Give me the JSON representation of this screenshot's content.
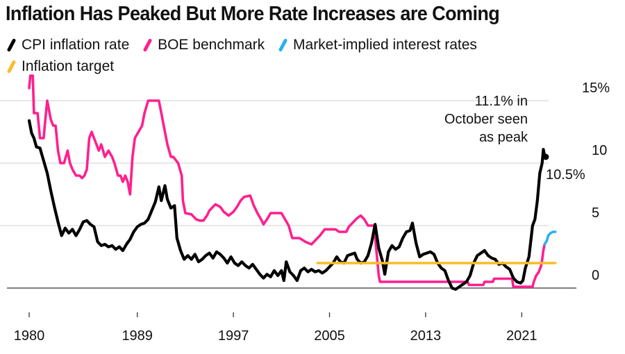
{
  "header": {
    "title": "Inflation Has Peaked But More Rate Increases are Coming"
  },
  "legend": [
    {
      "label": "CPI inflation rate",
      "color": "#000000"
    },
    {
      "label": "BOE benchmark",
      "color": "#ff1f8e"
    },
    {
      "label": "Market-implied interest rates",
      "color": "#2ab0ef"
    },
    {
      "label": "Inflation target",
      "color": "#fbbc2a"
    }
  ],
  "chart_data": {
    "type": "line",
    "title": "Inflation Has Peaked But More Rate Increases are Coming",
    "xlabel": "",
    "ylabel": "",
    "xlim": [
      1980,
      2024
    ],
    "ylim": [
      0,
      15
    ],
    "y_ticks": [
      0,
      5,
      10,
      15
    ],
    "y_tick_labels": [
      "0",
      "5",
      "10",
      "15%"
    ],
    "x_ticks": [
      1980,
      1989,
      1997,
      2005,
      2013,
      2021
    ],
    "x_tick_labels": [
      "1980",
      "1989",
      "1997",
      "2005",
      "2013",
      "2021"
    ],
    "grid": "horizontal",
    "y_axis_side": "right",
    "legend_position": "top-left",
    "annotations": [
      {
        "text_lines": [
          "11.1% in",
          "October seen",
          "as peak"
        ],
        "x": 2022.8,
        "y": 11.1
      },
      {
        "text": "10.5%",
        "x": 2023.0,
        "y": 10.5
      }
    ],
    "series": [
      {
        "name": "CPI inflation rate",
        "color": "#000000",
        "points": [
          [
            1980.0,
            13.4
          ],
          [
            1980.2,
            12.4
          ],
          [
            1980.4,
            12.0
          ],
          [
            1980.6,
            11.3
          ],
          [
            1980.9,
            11.2
          ],
          [
            1981.2,
            10.2
          ],
          [
            1981.5,
            9.2
          ],
          [
            1981.8,
            7.8
          ],
          [
            1982.1,
            6.5
          ],
          [
            1982.4,
            5.3
          ],
          [
            1982.7,
            4.2
          ],
          [
            1983.0,
            4.8
          ],
          [
            1983.3,
            4.4
          ],
          [
            1983.6,
            4.7
          ],
          [
            1983.9,
            4.2
          ],
          [
            1984.2,
            4.7
          ],
          [
            1984.5,
            5.3
          ],
          [
            1984.8,
            5.4
          ],
          [
            1985.1,
            5.1
          ],
          [
            1985.4,
            4.9
          ],
          [
            1985.7,
            3.7
          ],
          [
            1986.0,
            3.4
          ],
          [
            1986.3,
            3.5
          ],
          [
            1986.6,
            3.3
          ],
          [
            1986.9,
            3.4
          ],
          [
            1987.2,
            3.1
          ],
          [
            1987.5,
            3.3
          ],
          [
            1987.8,
            3.0
          ],
          [
            1988.1,
            3.5
          ],
          [
            1988.4,
            3.9
          ],
          [
            1988.7,
            4.5
          ],
          [
            1989.0,
            4.9
          ],
          [
            1989.3,
            5.1
          ],
          [
            1989.6,
            5.2
          ],
          [
            1989.9,
            5.5
          ],
          [
            1990.2,
            6.2
          ],
          [
            1990.5,
            6.9
          ],
          [
            1990.8,
            8.1
          ],
          [
            1991.0,
            7.0
          ],
          [
            1991.3,
            8.2
          ],
          [
            1991.5,
            7.1
          ],
          [
            1991.8,
            6.4
          ],
          [
            1992.1,
            6.6
          ],
          [
            1992.3,
            4.0
          ],
          [
            1992.6,
            3.0
          ],
          [
            1992.9,
            2.3
          ],
          [
            1993.2,
            2.6
          ],
          [
            1993.5,
            2.3
          ],
          [
            1993.8,
            2.7
          ],
          [
            1994.1,
            2.1
          ],
          [
            1994.4,
            2.3
          ],
          [
            1994.7,
            2.6
          ],
          [
            1995.0,
            2.8
          ],
          [
            1995.3,
            2.4
          ],
          [
            1995.6,
            2.9
          ],
          [
            1995.9,
            2.7
          ],
          [
            1996.2,
            2.4
          ],
          [
            1996.5,
            2.0
          ],
          [
            1996.8,
            2.5
          ],
          [
            1997.1,
            2.0
          ],
          [
            1997.4,
            1.8
          ],
          [
            1997.7,
            2.1
          ],
          [
            1998.0,
            1.8
          ],
          [
            1998.3,
            1.6
          ],
          [
            1998.6,
            1.9
          ],
          [
            1998.9,
            1.5
          ],
          [
            1999.2,
            1.1
          ],
          [
            1999.5,
            0.8
          ],
          [
            1999.8,
            1.1
          ],
          [
            2000.1,
            0.9
          ],
          [
            2000.4,
            1.4
          ],
          [
            2000.7,
            1.0
          ],
          [
            2001.0,
            1.4
          ],
          [
            2001.2,
            0.6
          ],
          [
            2001.4,
            2.1
          ],
          [
            2001.7,
            1.3
          ],
          [
            2002.0,
            1.0
          ],
          [
            2002.3,
            0.6
          ],
          [
            2002.6,
            1.4
          ],
          [
            2002.9,
            1.6
          ],
          [
            2003.2,
            1.3
          ],
          [
            2003.5,
            1.5
          ],
          [
            2003.8,
            1.3
          ],
          [
            2004.1,
            1.4
          ],
          [
            2004.4,
            1.2
          ],
          [
            2004.7,
            1.4
          ],
          [
            2005.0,
            1.7
          ],
          [
            2005.3,
            2.0
          ],
          [
            2005.6,
            2.5
          ],
          [
            2005.9,
            2.1
          ],
          [
            2006.2,
            2.0
          ],
          [
            2006.5,
            2.6
          ],
          [
            2006.8,
            2.7
          ],
          [
            2007.1,
            2.8
          ],
          [
            2007.3,
            2.3
          ],
          [
            2007.6,
            2.0
          ],
          [
            2007.9,
            2.1
          ],
          [
            2008.2,
            2.6
          ],
          [
            2008.5,
            3.6
          ],
          [
            2008.8,
            5.1
          ],
          [
            2009.1,
            3.2
          ],
          [
            2009.4,
            2.2
          ],
          [
            2009.6,
            1.1
          ],
          [
            2009.9,
            2.9
          ],
          [
            2010.2,
            3.4
          ],
          [
            2010.5,
            3.1
          ],
          [
            2010.8,
            3.3
          ],
          [
            2011.1,
            4.0
          ],
          [
            2011.4,
            4.5
          ],
          [
            2011.7,
            4.6
          ],
          [
            2011.9,
            5.2
          ],
          [
            2012.2,
            3.6
          ],
          [
            2012.5,
            2.5
          ],
          [
            2012.8,
            2.7
          ],
          [
            2013.1,
            2.8
          ],
          [
            2013.4,
            2.9
          ],
          [
            2013.7,
            2.7
          ],
          [
            2014.0,
            2.0
          ],
          [
            2014.3,
            1.6
          ],
          [
            2014.6,
            1.4
          ],
          [
            2014.9,
            0.6
          ],
          [
            2015.2,
            0.0
          ],
          [
            2015.5,
            -0.1
          ],
          [
            2015.8,
            0.1
          ],
          [
            2016.1,
            0.3
          ],
          [
            2016.4,
            0.5
          ],
          [
            2016.7,
            1.0
          ],
          [
            2017.0,
            2.0
          ],
          [
            2017.3,
            2.6
          ],
          [
            2017.6,
            2.8
          ],
          [
            2017.9,
            3.0
          ],
          [
            2018.2,
            2.6
          ],
          [
            2018.5,
            2.4
          ],
          [
            2018.8,
            2.3
          ],
          [
            2019.1,
            1.9
          ],
          [
            2019.4,
            2.0
          ],
          [
            2019.7,
            1.7
          ],
          [
            2020.0,
            1.5
          ],
          [
            2020.3,
            0.8
          ],
          [
            2020.6,
            0.5
          ],
          [
            2020.9,
            0.4
          ],
          [
            2021.1,
            0.6
          ],
          [
            2021.3,
            1.6
          ],
          [
            2021.6,
            2.5
          ],
          [
            2021.9,
            5.0
          ],
          [
            2022.1,
            5.5
          ],
          [
            2022.3,
            7.0
          ],
          [
            2022.5,
            9.2
          ],
          [
            2022.7,
            10.0
          ],
          [
            2022.8,
            11.1
          ],
          [
            2022.9,
            10.6
          ],
          [
            2023.0,
            10.5
          ]
        ]
      },
      {
        "name": "BOE benchmark",
        "color": "#ff1f8e",
        "points": [
          [
            1980.0,
            16.0
          ],
          [
            1980.1,
            17.0
          ],
          [
            1980.3,
            17.0
          ],
          [
            1980.4,
            14.0
          ],
          [
            1980.7,
            14.0
          ],
          [
            1980.9,
            12.0
          ],
          [
            1981.2,
            12.0
          ],
          [
            1981.4,
            14.0
          ],
          [
            1981.5,
            15.0
          ],
          [
            1981.8,
            13.5
          ],
          [
            1982.0,
            13.0
          ],
          [
            1982.2,
            13.0
          ],
          [
            1982.4,
            11.0
          ],
          [
            1982.6,
            10.0
          ],
          [
            1982.9,
            10.0
          ],
          [
            1983.2,
            11.0
          ],
          [
            1983.4,
            10.0
          ],
          [
            1983.6,
            9.5
          ],
          [
            1983.9,
            9.0
          ],
          [
            1984.2,
            9.0
          ],
          [
            1984.4,
            8.8
          ],
          [
            1984.6,
            9.0
          ],
          [
            1984.8,
            9.5
          ],
          [
            1985.0,
            12.0
          ],
          [
            1985.2,
            12.5
          ],
          [
            1985.4,
            12.0
          ],
          [
            1985.6,
            11.5
          ],
          [
            1985.8,
            11.0
          ],
          [
            1986.0,
            11.5
          ],
          [
            1986.3,
            10.5
          ],
          [
            1986.6,
            11.0
          ],
          [
            1986.9,
            10.5
          ],
          [
            1987.1,
            10.0
          ],
          [
            1987.4,
            9.0
          ],
          [
            1987.6,
            9.0
          ],
          [
            1987.8,
            8.5
          ],
          [
            1988.0,
            9.0
          ],
          [
            1988.2,
            8.5
          ],
          [
            1988.4,
            7.5
          ],
          [
            1988.6,
            10.5
          ],
          [
            1988.8,
            12.0
          ],
          [
            1989.1,
            12.5
          ],
          [
            1989.4,
            13.0
          ],
          [
            1989.6,
            14.0
          ],
          [
            1989.9,
            15.0
          ],
          [
            1990.8,
            15.0
          ],
          [
            1991.0,
            14.0
          ],
          [
            1991.3,
            12.5
          ],
          [
            1991.5,
            11.5
          ],
          [
            1991.8,
            10.5
          ],
          [
            1992.0,
            10.5
          ],
          [
            1992.4,
            10.0
          ],
          [
            1992.7,
            9.0
          ],
          [
            1992.8,
            7.0
          ],
          [
            1993.0,
            6.0
          ],
          [
            1993.5,
            5.9
          ],
          [
            1993.9,
            5.5
          ],
          [
            1994.2,
            5.4
          ],
          [
            1994.5,
            5.4
          ],
          [
            1994.8,
            5.8
          ],
          [
            1995.0,
            6.2
          ],
          [
            1995.5,
            6.7
          ],
          [
            1995.9,
            6.5
          ],
          [
            1996.2,
            6.1
          ],
          [
            1996.6,
            5.8
          ],
          [
            1997.0,
            6.1
          ],
          [
            1997.3,
            6.5
          ],
          [
            1997.6,
            7.0
          ],
          [
            1997.9,
            7.3
          ],
          [
            1998.4,
            7.4
          ],
          [
            1998.7,
            6.6
          ],
          [
            1999.0,
            6.0
          ],
          [
            1999.3,
            5.5
          ],
          [
            1999.5,
            5.1
          ],
          [
            1999.8,
            5.5
          ],
          [
            2000.1,
            6.0
          ],
          [
            2001.0,
            6.0
          ],
          [
            2001.3,
            5.5
          ],
          [
            2001.6,
            5.0
          ],
          [
            2001.9,
            4.0
          ],
          [
            2002.5,
            4.0
          ],
          [
            2003.0,
            3.7
          ],
          [
            2003.5,
            3.5
          ],
          [
            2003.8,
            3.8
          ],
          [
            2004.2,
            4.2
          ],
          [
            2004.6,
            4.7
          ],
          [
            2005.5,
            4.7
          ],
          [
            2005.8,
            4.5
          ],
          [
            2006.4,
            4.5
          ],
          [
            2006.6,
            4.9
          ],
          [
            2006.9,
            5.2
          ],
          [
            2007.3,
            5.6
          ],
          [
            2007.6,
            5.8
          ],
          [
            2007.9,
            5.5
          ],
          [
            2008.2,
            5.0
          ],
          [
            2008.7,
            5.0
          ],
          [
            2008.9,
            3.0
          ],
          [
            2009.1,
            1.0
          ],
          [
            2009.2,
            0.5
          ],
          [
            2016.5,
            0.5
          ],
          [
            2016.6,
            0.25
          ],
          [
            2017.8,
            0.25
          ],
          [
            2017.9,
            0.5
          ],
          [
            2018.6,
            0.5
          ],
          [
            2018.7,
            0.75
          ],
          [
            2020.2,
            0.75
          ],
          [
            2020.3,
            0.1
          ],
          [
            2021.9,
            0.1
          ],
          [
            2022.0,
            0.5
          ],
          [
            2022.2,
            1.0
          ],
          [
            2022.4,
            1.25
          ],
          [
            2022.6,
            1.75
          ],
          [
            2022.7,
            2.25
          ],
          [
            2022.8,
            3.0
          ],
          [
            2022.9,
            3.5
          ]
        ]
      },
      {
        "name": "Market-implied interest rates",
        "color": "#2ab0ef",
        "points": [
          [
            2022.9,
            3.5
          ],
          [
            2023.1,
            3.8
          ],
          [
            2023.2,
            4.2
          ],
          [
            2023.4,
            4.4
          ],
          [
            2023.6,
            4.5
          ],
          [
            2023.8,
            4.5
          ]
        ]
      },
      {
        "name": "Inflation target",
        "color": "#fbbc2a",
        "points": [
          [
            2004.0,
            2.0
          ],
          [
            2023.8,
            2.0
          ]
        ]
      }
    ]
  }
}
